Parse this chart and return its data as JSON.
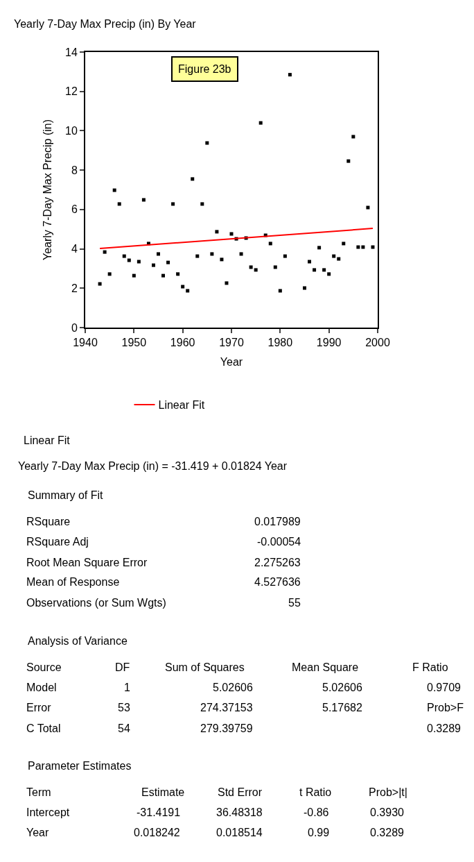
{
  "chart_data": {
    "type": "scatter",
    "title": "Yearly 7-Day Max Precip (in) By Year",
    "xlabel": "Year",
    "ylabel": "Yearly 7-Day Max Precip (in)",
    "xlim": [
      1940,
      2000
    ],
    "xticks": [
      1940,
      1950,
      1960,
      1970,
      1980,
      1990,
      2000
    ],
    "ylim": [
      0,
      14
    ],
    "yticks": [
      0,
      2,
      4,
      6,
      8,
      10,
      12,
      14
    ],
    "legend": "bottom",
    "marker": "square",
    "series": [
      {
        "color": "#000000",
        "x": [
          1943,
          1944,
          1945,
          1946,
          1947,
          1948,
          1949,
          1950,
          1951,
          1952,
          1953,
          1954,
          1955,
          1956,
          1957,
          1958,
          1959,
          1960,
          1961,
          1962,
          1963,
          1964,
          1965,
          1966,
          1967,
          1968,
          1969,
          1970,
          1971,
          1972,
          1973,
          1974,
          1975,
          1976,
          1977,
          1978,
          1979,
          1980,
          1981,
          1982,
          1985,
          1986,
          1987,
          1988,
          1989,
          1990,
          1991,
          1992,
          1993,
          1994,
          1995,
          1996,
          1997,
          1998,
          1999
        ],
        "values": [
          2.22,
          3.84,
          2.72,
          6.98,
          6.28,
          3.63,
          3.42,
          2.64,
          3.35,
          6.49,
          4.27,
          3.17,
          3.74,
          2.64,
          3.31,
          6.28,
          2.72,
          2.08,
          1.87,
          7.55,
          3.63,
          6.28,
          9.38,
          3.74,
          4.87,
          3.46,
          2.26,
          4.76,
          4.51,
          3.74,
          4.55,
          3.07,
          2.93,
          10.4,
          4.69,
          4.27,
          3.07,
          1.87,
          3.63,
          12.85,
          2.01,
          3.35,
          2.93,
          4.06,
          2.93,
          2.72,
          3.63,
          3.49,
          4.27,
          8.46,
          9.7,
          4.09,
          4.09,
          6.1,
          4.09
        ]
      },
      {
        "type": "line",
        "name": "Linear Fit",
        "color": "#ff0000",
        "marker": "none",
        "x": [
          1943,
          1999
        ],
        "values": [
          4.02,
          5.04
        ]
      }
    ],
    "annotations": [
      "Figure 23b",
      "Linear Fit",
      "Yearly 7-Day Max Precip (in) = -31.419 + 0.01824 Year",
      "Summary of Fit",
      "RSquare",
      "0.017989",
      "RSquare Adj",
      "-0.00054",
      "Root Mean Square Error",
      "2.275263",
      "Mean of Response",
      "4.527636",
      "Observations (or Sum Wgts)",
      "55",
      "Analysis of Variance",
      "Source",
      "DF",
      "Sum of Squares",
      "Mean Square",
      "F Ratio",
      "Model",
      "1",
      "5.02606",
      "5.02606",
      "0.9709",
      "Error",
      "53",
      "274.37153",
      "5.17682",
      "Prob>F",
      "C Total",
      "54",
      "279.39759",
      "0.3289",
      "Parameter Estimates",
      "Term",
      "Estimate",
      "Std Error",
      "t Ratio",
      "Prob>|t|",
      "Intercept",
      "-31.4191",
      "36.48318",
      "-0.86",
      "0.3930",
      "Year",
      "0.018242",
      "0.018514",
      "0.99",
      "0.3289"
    ]
  }
}
